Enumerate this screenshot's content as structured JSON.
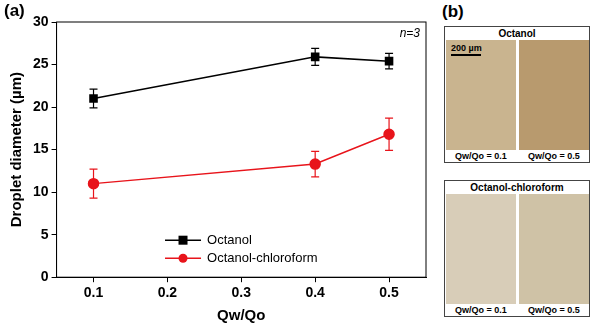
{
  "chart_data": {
    "type": "line",
    "panel_label": "(a)",
    "annotation": "n=3",
    "x_label": "Qw/Qo",
    "y_label": "Droplet diameter (µm)",
    "x": [
      0.1,
      0.4,
      0.5
    ],
    "xlim": [
      0.05,
      0.55
    ],
    "xticks": [
      0.1,
      0.2,
      0.3,
      0.4,
      0.5
    ],
    "ylim": [
      0,
      30
    ],
    "yticks": [
      0,
      5,
      10,
      15,
      20,
      25,
      30
    ],
    "grid": false,
    "legend": "lower center",
    "series": [
      {
        "name": "Octanol",
        "color": "#000000",
        "marker": "square",
        "line_style": "solid",
        "values": [
          21.0,
          25.9,
          25.4
        ],
        "errors": [
          1.1,
          1.0,
          0.9
        ]
      },
      {
        "name": "Octanol-chloroform",
        "color": "#e8141b",
        "marker": "circle",
        "line_style": "solid",
        "values": [
          11.0,
          13.3,
          16.8
        ],
        "errors": [
          1.7,
          1.5,
          1.9
        ]
      }
    ]
  },
  "image_panel": {
    "label": "(b)",
    "groups": [
      {
        "title": "Octanol",
        "scale_bar": "200 µm",
        "images": [
          {
            "caption": "Qw/Qo = 0.1"
          },
          {
            "caption": "Qw/Qo = 0.5"
          }
        ]
      },
      {
        "title": "Octanol-chloroform",
        "images": [
          {
            "caption": "Qw/Qo = 0.1"
          },
          {
            "caption": "Qw/Qo = 0.5"
          }
        ]
      }
    ]
  }
}
